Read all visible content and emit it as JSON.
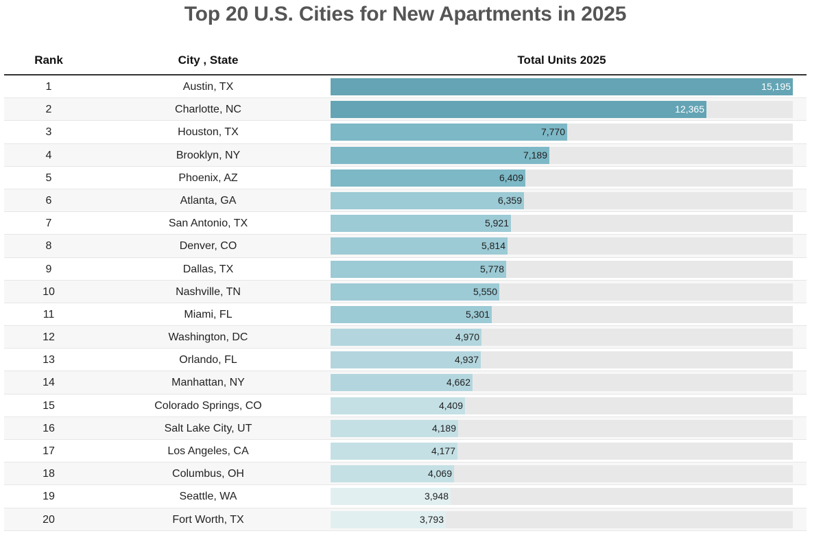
{
  "chart_data": {
    "type": "table",
    "title": "Top 20 U.S. Cities for New Apartments in 2025",
    "columns": [
      "Rank",
      "City , State",
      "Total Units 2025"
    ],
    "xlim": [
      0,
      15195
    ],
    "rows": [
      {
        "rank": "1",
        "city": "Austin, TX",
        "units": 15195,
        "label": "15,195",
        "color": "#64a4b4"
      },
      {
        "rank": "2",
        "city": "Charlotte, NC",
        "units": 12365,
        "label": "12,365",
        "color": "#64a4b4"
      },
      {
        "rank": "3",
        "city": "Houston, TX",
        "units": 7770,
        "label": "7,770",
        "color": "#7db8c6"
      },
      {
        "rank": "4",
        "city": "Brooklyn, NY",
        "units": 7189,
        "label": "7,189",
        "color": "#7db8c6"
      },
      {
        "rank": "5",
        "city": "Phoenix, AZ",
        "units": 6409,
        "label": "6,409",
        "color": "#7db8c6"
      },
      {
        "rank": "6",
        "city": "Atlanta, GA",
        "units": 6359,
        "label": "6,359",
        "color": "#9ccad5"
      },
      {
        "rank": "7",
        "city": "San Antonio, TX",
        "units": 5921,
        "label": "5,921",
        "color": "#9ccad5"
      },
      {
        "rank": "8",
        "city": "Denver, CO",
        "units": 5814,
        "label": "5,814",
        "color": "#9ccad5"
      },
      {
        "rank": "9",
        "city": "Dallas, TX",
        "units": 5778,
        "label": "5,778",
        "color": "#9ccad5"
      },
      {
        "rank": "10",
        "city": "Nashville, TN",
        "units": 5550,
        "label": "5,550",
        "color": "#9ccad5"
      },
      {
        "rank": "11",
        "city": "Miami, FL",
        "units": 5301,
        "label": "5,301",
        "color": "#9ccad5"
      },
      {
        "rank": "12",
        "city": "Washington, DC",
        "units": 4970,
        "label": "4,970",
        "color": "#b3d6de"
      },
      {
        "rank": "13",
        "city": "Orlando, FL",
        "units": 4937,
        "label": "4,937",
        "color": "#b3d6de"
      },
      {
        "rank": "14",
        "city": "Manhattan, NY",
        "units": 4662,
        "label": "4,662",
        "color": "#b3d6de"
      },
      {
        "rank": "15",
        "city": "Colorado Springs, CO",
        "units": 4409,
        "label": "4,409",
        "color": "#c4e0e5"
      },
      {
        "rank": "16",
        "city": "Salt Lake City, UT",
        "units": 4189,
        "label": "4,189",
        "color": "#c4e0e5"
      },
      {
        "rank": "17",
        "city": "Los Angeles, CA",
        "units": 4177,
        "label": "4,177",
        "color": "#c4e0e5"
      },
      {
        "rank": "18",
        "city": "Columbus, OH",
        "units": 4069,
        "label": "4,069",
        "color": "#c4e0e5"
      },
      {
        "rank": "19",
        "city": "Seattle, WA",
        "units": 3948,
        "label": "3,948",
        "color": "#e1eff1"
      },
      {
        "rank": "20",
        "city": "Fort Worth, TX",
        "units": 3793,
        "label": "3,793",
        "color": "#e1eff1"
      }
    ]
  }
}
